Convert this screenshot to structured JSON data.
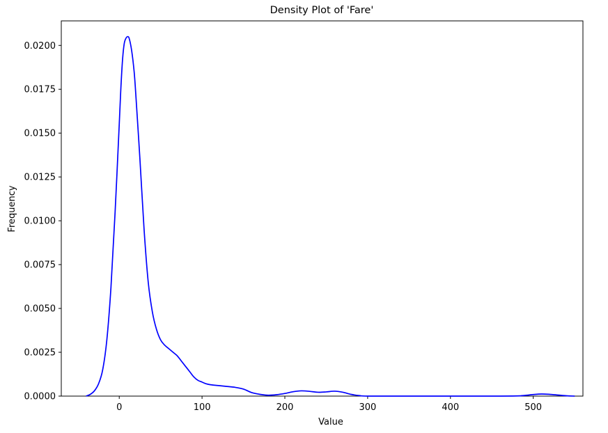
{
  "chart_data": {
    "type": "line",
    "title": "Density Plot of 'Fare'",
    "xlabel": "Value",
    "ylabel": "Frequency",
    "xlim": [
      -70,
      560
    ],
    "ylim": [
      0,
      0.0214
    ],
    "xticks": [
      0,
      100,
      200,
      300,
      400,
      500
    ],
    "xtick_labels": [
      "0",
      "100",
      "200",
      "300",
      "400",
      "500"
    ],
    "yticks": [
      0,
      0.0025,
      0.005,
      0.0075,
      0.01,
      0.0125,
      0.015,
      0.0175,
      0.02
    ],
    "ytick_labels": [
      "0.0000",
      "0.0025",
      "0.0050",
      "0.0075",
      "0.0100",
      "0.0125",
      "0.0150",
      "0.0175",
      "0.0200"
    ],
    "grid": false,
    "legend": "none",
    "series": [
      {
        "color": "#0000ff",
        "x": [
          -40,
          -35,
          -30,
          -25,
          -20,
          -15,
          -10,
          -5,
          0,
          2,
          4,
          6,
          8,
          10,
          12,
          15,
          18,
          20,
          25,
          30,
          35,
          40,
          45,
          50,
          55,
          60,
          65,
          70,
          75,
          80,
          85,
          90,
          95,
          100,
          105,
          110,
          120,
          130,
          140,
          150,
          160,
          170,
          180,
          190,
          200,
          210,
          220,
          230,
          240,
          250,
          260,
          270,
          280,
          290,
          300,
          350,
          400,
          450,
          480,
          490,
          500,
          510,
          520,
          530,
          540,
          550
        ],
        "y": [
          0.0,
          0.0001,
          0.0003,
          0.0007,
          0.0015,
          0.0032,
          0.0062,
          0.0105,
          0.0155,
          0.0176,
          0.0192,
          0.0201,
          0.0204,
          0.0205,
          0.0204,
          0.0197,
          0.0185,
          0.0172,
          0.0135,
          0.0095,
          0.0065,
          0.0048,
          0.0038,
          0.0032,
          0.0029,
          0.0027,
          0.0025,
          0.0023,
          0.002,
          0.0017,
          0.0014,
          0.0011,
          0.0009,
          0.0008,
          0.0007,
          0.00065,
          0.0006,
          0.00055,
          0.0005,
          0.0004,
          0.0002,
          0.0001,
          5e-05,
          8e-05,
          0.00015,
          0.00025,
          0.0003,
          0.00027,
          0.00022,
          0.00024,
          0.00028,
          0.00022,
          0.0001,
          3e-05,
          0.0,
          0.0,
          0.0,
          0.0,
          1e-05,
          4e-05,
          9e-05,
          0.00012,
          0.0001,
          6e-05,
          2e-05,
          0.0
        ]
      }
    ]
  }
}
